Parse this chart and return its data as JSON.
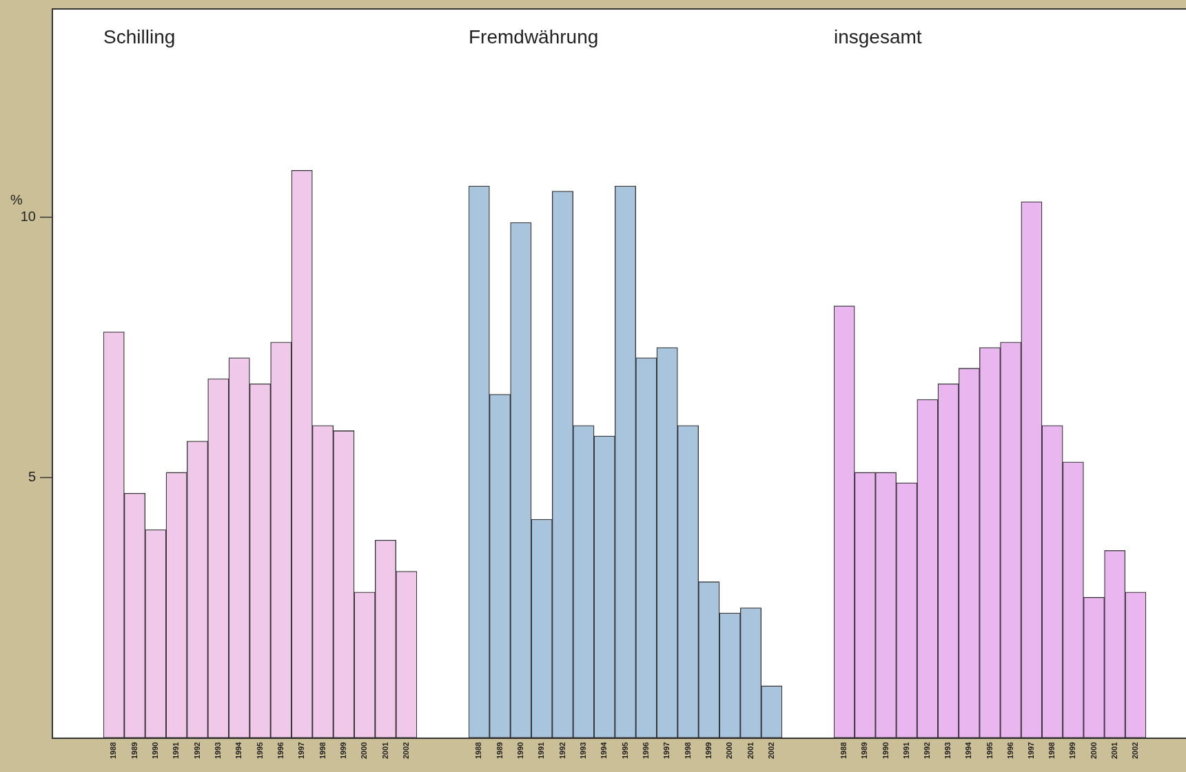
{
  "chart_data": [
    {
      "type": "bar",
      "title": "Schilling",
      "ylabel": "%",
      "categories": [
        "1988",
        "1989",
        "1990",
        "1991",
        "1992",
        "1993",
        "1994",
        "1995",
        "1996",
        "1997",
        "1998",
        "1999",
        "2000",
        "2001",
        "2002"
      ],
      "values": [
        7.8,
        4.7,
        4.0,
        5.1,
        5.7,
        6.9,
        7.3,
        6.8,
        7.6,
        10.9,
        6.0,
        5.9,
        2.8,
        3.8,
        3.2
      ],
      "color": "#f0c8ea",
      "ylim": [
        0,
        14
      ],
      "yticks": [
        5,
        10
      ],
      "grid": false,
      "legend": false
    },
    {
      "type": "bar",
      "title": "Fremdwährung",
      "categories": [
        "1988",
        "1989",
        "1990",
        "1991",
        "1992",
        "1993",
        "1994",
        "1995",
        "1996",
        "1997",
        "1998",
        "1999",
        "2000",
        "2001",
        "2002"
      ],
      "values": [
        10.6,
        6.6,
        9.9,
        4.2,
        10.5,
        6.0,
        5.8,
        10.6,
        7.3,
        7.5,
        6.0,
        3.0,
        2.4,
        2.5,
        1.0
      ],
      "color": "#a9c5de",
      "ylim": [
        0,
        14
      ],
      "grid": false,
      "legend": false,
      "tick_labels": "x"
    },
    {
      "type": "bar",
      "title": "insgesamt",
      "categories": [
        "1988",
        "1989",
        "1990",
        "1991",
        "1992",
        "1993",
        "1994",
        "1995",
        "1996",
        "1997",
        "1998",
        "1999",
        "2000",
        "2001",
        "2002"
      ],
      "values": [
        8.3,
        5.1,
        5.1,
        4.9,
        6.5,
        6.8,
        7.1,
        7.5,
        7.6,
        10.3,
        6.0,
        5.3,
        2.7,
        3.6,
        2.8
      ],
      "color": "#eab6f0",
      "ylim": [
        0,
        14
      ],
      "grid": false,
      "legend": false,
      "tick_labels": "x"
    }
  ]
}
